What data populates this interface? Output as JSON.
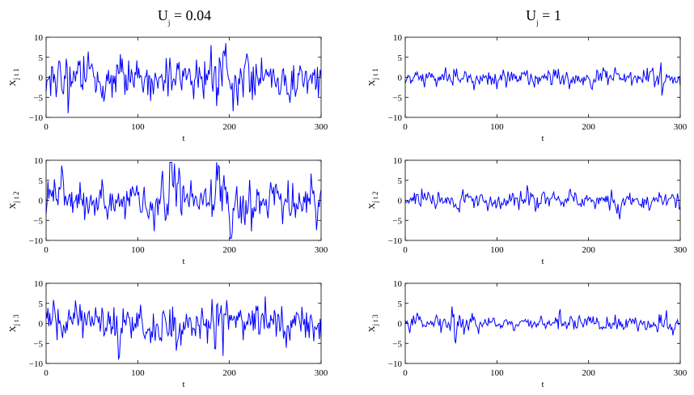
{
  "figure": {
    "column_titles": [
      {
        "main": "U",
        "sub": "j",
        "rest": " = 0.04"
      },
      {
        "main": "U",
        "sub": "j",
        "rest": " = 1"
      }
    ]
  },
  "colors": {
    "line": "#0000ff",
    "axes": "#000000",
    "background": "#ffffff"
  },
  "chart_data": [
    {
      "type": "line",
      "title": "U_j = 0.04",
      "xlabel": "t",
      "ylabel": "X_j,t,1",
      "ylabel_parts": {
        "main": "X",
        "sub": "j t 1"
      },
      "xlim": [
        0,
        300
      ],
      "ylim": [
        -10,
        10
      ],
      "xticks": [
        0,
        100,
        200,
        300
      ],
      "yticks": [
        10,
        5,
        0,
        -5,
        -10
      ],
      "grid": false,
      "series": [
        {
          "seed": 11,
          "amplitude": 3.0,
          "bursts": [
            [
              10,
              30,
              1.4
            ],
            [
              80,
              95,
              1.5
            ],
            [
              185,
              225,
              1.7
            ],
            [
              255,
              275,
              1.3
            ]
          ]
        }
      ]
    },
    {
      "type": "line",
      "title": "U_j = 1",
      "xlabel": "t",
      "ylabel": "X_j,t,1",
      "ylabel_parts": {
        "main": "X",
        "sub": "j t 1"
      },
      "xlim": [
        0,
        300
      ],
      "ylim": [
        -10,
        10
      ],
      "xticks": [
        0,
        100,
        200,
        300
      ],
      "yticks": [
        10,
        5,
        0,
        -5,
        -10
      ],
      "grid": false,
      "series": [
        {
          "seed": 12,
          "amplitude": 1.2,
          "bursts": [
            [
              105,
              112,
              2.0
            ],
            [
              140,
              145,
              1.8
            ],
            [
              270,
              280,
              1.9
            ]
          ]
        }
      ]
    },
    {
      "type": "line",
      "title": "",
      "xlabel": "t",
      "ylabel": "X_j,t,2",
      "ylabel_parts": {
        "main": "X",
        "sub": "j t 2"
      },
      "xlim": [
        0,
        300
      ],
      "ylim": [
        -10,
        10
      ],
      "xticks": [
        0,
        100,
        200,
        300
      ],
      "yticks": [
        10,
        5,
        0,
        -5,
        -10
      ],
      "grid": false,
      "series": [
        {
          "seed": 21,
          "amplitude": 2.7,
          "bursts": [
            [
              10,
              25,
              1.6
            ],
            [
              80,
              90,
              1.6
            ],
            [
              135,
              150,
              1.8
            ],
            [
              180,
              225,
              2.0
            ]
          ]
        }
      ]
    },
    {
      "type": "line",
      "title": "",
      "xlabel": "t",
      "ylabel": "X_j,t,2",
      "ylabel_parts": {
        "main": "X",
        "sub": "j t 2"
      },
      "xlim": [
        0,
        300
      ],
      "ylim": [
        -10,
        10
      ],
      "xticks": [
        0,
        100,
        200,
        300
      ],
      "yticks": [
        10,
        5,
        0,
        -5,
        -10
      ],
      "grid": false,
      "series": [
        {
          "seed": 22,
          "amplitude": 1.2,
          "bursts": [
            [
              140,
              150,
              1.8
            ],
            [
              225,
              240,
              1.7
            ]
          ]
        }
      ]
    },
    {
      "type": "line",
      "title": "",
      "xlabel": "t",
      "ylabel": "X_j,t,3",
      "ylabel_parts": {
        "main": "X",
        "sub": "j t 3"
      },
      "xlim": [
        0,
        300
      ],
      "ylim": [
        -10,
        10
      ],
      "xticks": [
        0,
        100,
        200,
        300
      ],
      "yticks": [
        10,
        5,
        0,
        -5,
        -10
      ],
      "grid": false,
      "series": [
        {
          "seed": 31,
          "amplitude": 2.6,
          "bursts": [
            [
              55,
              80,
              1.6
            ],
            [
              180,
              200,
              2.0
            ],
            [
              135,
              145,
              1.5
            ]
          ]
        }
      ]
    },
    {
      "type": "line",
      "title": "",
      "xlabel": "t",
      "ylabel": "X_j,t,3",
      "ylabel_parts": {
        "main": "X",
        "sub": "j t 3"
      },
      "xlim": [
        0,
        300
      ],
      "ylim": [
        -10,
        10
      ],
      "xticks": [
        0,
        100,
        200,
        300
      ],
      "yticks": [
        10,
        5,
        0,
        -5,
        -10
      ],
      "grid": false,
      "series": [
        {
          "seed": 32,
          "amplitude": 1.2,
          "bursts": [
            [
              8,
              15,
              2.2
            ],
            [
              50,
              55,
              2.5
            ],
            [
              165,
              175,
              1.7
            ]
          ]
        }
      ]
    }
  ]
}
